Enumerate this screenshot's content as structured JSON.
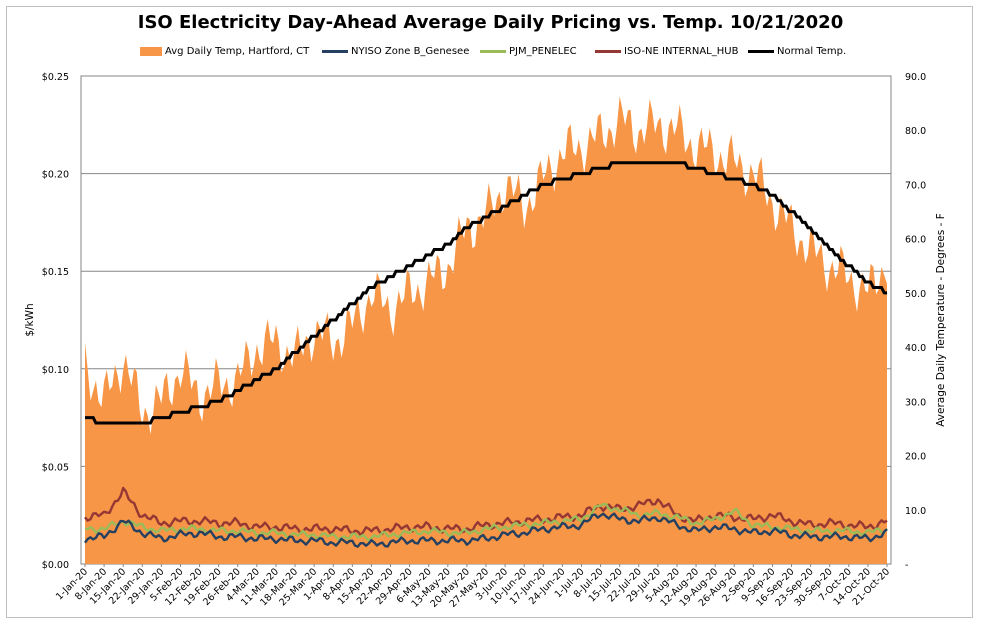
{
  "chart_data": {
    "type": "line",
    "title": "ISO Electricity Day-Ahead Average Daily Pricing vs. Temp. 10/21/2020",
    "ylabel": "$/kWh",
    "y2label": "Average Daily Temperature - Degrees - F",
    "ylim": [
      0,
      0.25
    ],
    "y2lim": [
      0,
      90
    ],
    "y_ticks": [
      "$0.00",
      "$0.05",
      "$0.10",
      "$0.15",
      "$0.20",
      "$0.25"
    ],
    "y2_ticks": [
      "-",
      "10.0",
      "20.0",
      "30.0",
      "40.0",
      "50.0",
      "60.0",
      "70.0",
      "80.0",
      "90.0"
    ],
    "x_ticks": [
      "1-Jan-20",
      "8-Jan-20",
      "15-Jan-20",
      "22-Jan-20",
      "29-Jan-20",
      "5-Feb-20",
      "12-Feb-20",
      "19-Feb-20",
      "26-Feb-20",
      "4-Mar-20",
      "11-Mar-20",
      "18-Mar-20",
      "25-Mar-20",
      "1-Apr-20",
      "8-Apr-20",
      "15-Apr-20",
      "22-Apr-20",
      "29-Apr-20",
      "6-May-20",
      "13-May-20",
      "20-May-20",
      "27-May-20",
      "3-Jun-20",
      "10-Jun-20",
      "17-Jun-20",
      "24-Jun-20",
      "1-Jul-20",
      "8-Jul-20",
      "15-Jul-20",
      "22-Jul-20",
      "29-Jul-20",
      "5-Aug-20",
      "12-Aug-20",
      "19-Aug-20",
      "26-Aug-20",
      "2-Sep-20",
      "9-Sep-20",
      "16-Sep-20",
      "23-Sep-20",
      "30-Sep-20",
      "7-Oct-20",
      "14-Oct-20",
      "21-Oct-20"
    ],
    "grid": "horizontal",
    "legend_position": "top",
    "series": [
      {
        "name": "Avg Daily Temp, Hartford, CT",
        "axis": "right",
        "kind": "area",
        "color": "#f79646",
        "weekly_values": [
          37,
          30,
          38,
          28,
          30,
          36,
          31,
          33,
          34,
          40,
          41,
          38,
          43,
          41,
          44,
          50,
          47,
          50,
          52,
          55,
          62,
          64,
          70,
          66,
          71,
          76,
          77,
          79,
          82,
          80,
          81,
          80,
          77,
          76,
          74,
          72,
          67,
          62,
          58,
          55,
          53,
          50,
          56
        ]
      },
      {
        "name": "NYISO Zone B_Genesee",
        "axis": "left",
        "kind": "line",
        "color": "#254061",
        "weekly_values": [
          0.013,
          0.014,
          0.022,
          0.016,
          0.013,
          0.015,
          0.016,
          0.014,
          0.014,
          0.013,
          0.013,
          0.012,
          0.012,
          0.011,
          0.011,
          0.01,
          0.011,
          0.012,
          0.012,
          0.012,
          0.012,
          0.013,
          0.015,
          0.016,
          0.018,
          0.019,
          0.02,
          0.026,
          0.023,
          0.022,
          0.024,
          0.02,
          0.017,
          0.019,
          0.018,
          0.016,
          0.017,
          0.015,
          0.014,
          0.014,
          0.014,
          0.013,
          0.016
        ]
      },
      {
        "name": "PJM_PENELEC",
        "axis": "left",
        "kind": "line",
        "color": "#9bbb59",
        "weekly_values": [
          0.018,
          0.018,
          0.022,
          0.019,
          0.017,
          0.018,
          0.018,
          0.017,
          0.017,
          0.016,
          0.016,
          0.015,
          0.015,
          0.014,
          0.014,
          0.014,
          0.015,
          0.016,
          0.017,
          0.016,
          0.016,
          0.018,
          0.019,
          0.02,
          0.021,
          0.022,
          0.023,
          0.03,
          0.028,
          0.025,
          0.026,
          0.024,
          0.021,
          0.023,
          0.027,
          0.02,
          0.019,
          0.018,
          0.017,
          0.017,
          0.017,
          0.016,
          0.018
        ]
      },
      {
        "name": "ISO-NE INTERNAL_HUB",
        "axis": "left",
        "kind": "line",
        "color": "#953735",
        "weekly_values": [
          0.024,
          0.025,
          0.037,
          0.025,
          0.021,
          0.022,
          0.022,
          0.021,
          0.021,
          0.019,
          0.019,
          0.018,
          0.018,
          0.018,
          0.017,
          0.017,
          0.018,
          0.019,
          0.019,
          0.018,
          0.018,
          0.02,
          0.021,
          0.022,
          0.023,
          0.024,
          0.025,
          0.03,
          0.028,
          0.03,
          0.033,
          0.025,
          0.022,
          0.025,
          0.024,
          0.023,
          0.025,
          0.022,
          0.02,
          0.021,
          0.02,
          0.019,
          0.022
        ]
      },
      {
        "name": "Normal Temp.",
        "axis": "right",
        "kind": "line",
        "color": "#000000",
        "weekly_values": [
          27,
          26,
          26,
          26,
          27,
          28,
          29,
          30,
          32,
          34,
          36,
          39,
          42,
          45,
          48,
          51,
          53,
          55,
          57,
          59,
          62,
          64,
          66,
          68,
          70,
          71,
          72,
          73,
          74,
          74,
          74,
          74,
          73,
          72,
          71,
          70,
          68,
          65,
          62,
          58,
          55,
          52,
          50
        ]
      }
    ]
  }
}
